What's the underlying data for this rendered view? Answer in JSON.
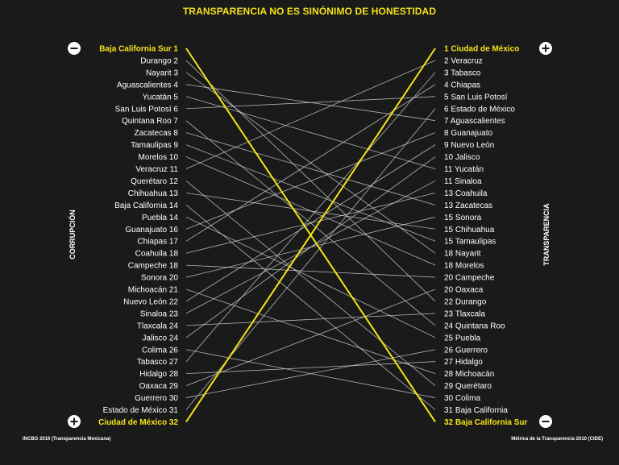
{
  "chart_data": {
    "type": "slope",
    "title": "TRANSPARENCIA NO ES SINÓNIMO DE HONESTIDAD",
    "left_axis_label": "CORRUPCIÓN",
    "right_axis_label": "TRANSPARENCIA",
    "left_source": "INCBG 2010 (Transparencia Mexicana)",
    "right_source": "Métrica de la Transparencia 2010 (CIDE)",
    "left_top_sign": "−",
    "left_bottom_sign": "+",
    "right_top_sign": "+",
    "right_bottom_sign": "−",
    "highlight_color": "#f5e219",
    "line_color": "#d0d0d0",
    "left": [
      {
        "name": "Baja California Sur",
        "rank": 1
      },
      {
        "name": "Durango",
        "rank": 2
      },
      {
        "name": "Nayarit",
        "rank": 3
      },
      {
        "name": "Aguascalientes",
        "rank": 4
      },
      {
        "name": "Yucatán",
        "rank": 5
      },
      {
        "name": "San Luis Potosí",
        "rank": 6
      },
      {
        "name": "Quintana Roo",
        "rank": 7
      },
      {
        "name": "Zacatecas",
        "rank": 8
      },
      {
        "name": "Tamaulipas",
        "rank": 9
      },
      {
        "name": "Morelos",
        "rank": 10
      },
      {
        "name": "Veracruz",
        "rank": 11
      },
      {
        "name": "Querétaro",
        "rank": 12
      },
      {
        "name": "Chihuahua",
        "rank": 13
      },
      {
        "name": "Baja California",
        "rank": 14
      },
      {
        "name": "Puebla",
        "rank": 14
      },
      {
        "name": "Guanajuato",
        "rank": 16
      },
      {
        "name": "Chiapas",
        "rank": 17
      },
      {
        "name": "Coahuila",
        "rank": 18
      },
      {
        "name": "Campeche",
        "rank": 18
      },
      {
        "name": "Sonora",
        "rank": 20
      },
      {
        "name": "Michoacán",
        "rank": 21
      },
      {
        "name": "Nuevo León",
        "rank": 22
      },
      {
        "name": "Sinaloa",
        "rank": 23
      },
      {
        "name": "Tlaxcala",
        "rank": 24
      },
      {
        "name": "Jalisco",
        "rank": 24
      },
      {
        "name": "Colima",
        "rank": 26
      },
      {
        "name": "Tabasco",
        "rank": 27
      },
      {
        "name": "Hidalgo",
        "rank": 28
      },
      {
        "name": "Oaxaca",
        "rank": 29
      },
      {
        "name": "Guerrero",
        "rank": 30
      },
      {
        "name": "Estado de México",
        "rank": 31
      },
      {
        "name": "Ciudad de México",
        "rank": 32
      }
    ],
    "right": [
      {
        "name": "Ciudad de México",
        "rank": 1
      },
      {
        "name": "Veracruz",
        "rank": 2
      },
      {
        "name": "Tabasco",
        "rank": 3
      },
      {
        "name": "Chiapas",
        "rank": 4
      },
      {
        "name": "San Luis Potosí",
        "rank": 5
      },
      {
        "name": "Estado de México",
        "rank": 6
      },
      {
        "name": "Aguascalientes",
        "rank": 7
      },
      {
        "name": "Guanajuato",
        "rank": 8
      },
      {
        "name": "Nuevo León",
        "rank": 9
      },
      {
        "name": "Jalisco",
        "rank": 10
      },
      {
        "name": "Yucatán",
        "rank": 11
      },
      {
        "name": "Sinaloa",
        "rank": 11
      },
      {
        "name": "Coahuila",
        "rank": 13
      },
      {
        "name": "Zacatecas",
        "rank": 13
      },
      {
        "name": "Sonora",
        "rank": 15
      },
      {
        "name": "Chihuahua",
        "rank": 15
      },
      {
        "name": "Tamaulipas",
        "rank": 15
      },
      {
        "name": "Nayarit",
        "rank": 18
      },
      {
        "name": "Morelos",
        "rank": 18
      },
      {
        "name": "Campeche",
        "rank": 20
      },
      {
        "name": "Oaxaca",
        "rank": 20
      },
      {
        "name": "Durango",
        "rank": 22
      },
      {
        "name": "Tlaxcala",
        "rank": 23
      },
      {
        "name": "Quintana Roo",
        "rank": 24
      },
      {
        "name": "Puebla",
        "rank": 25
      },
      {
        "name": "Guerrero",
        "rank": 26
      },
      {
        "name": "Hidalgo",
        "rank": 27
      },
      {
        "name": "Michoacán",
        "rank": 28
      },
      {
        "name": "Querétaro",
        "rank": 29
      },
      {
        "name": "Colima",
        "rank": 30
      },
      {
        "name": "Baja California",
        "rank": 31
      },
      {
        "name": "Baja California Sur",
        "rank": 32
      }
    ],
    "highlighted": [
      "Baja California Sur",
      "Ciudad de México"
    ]
  }
}
